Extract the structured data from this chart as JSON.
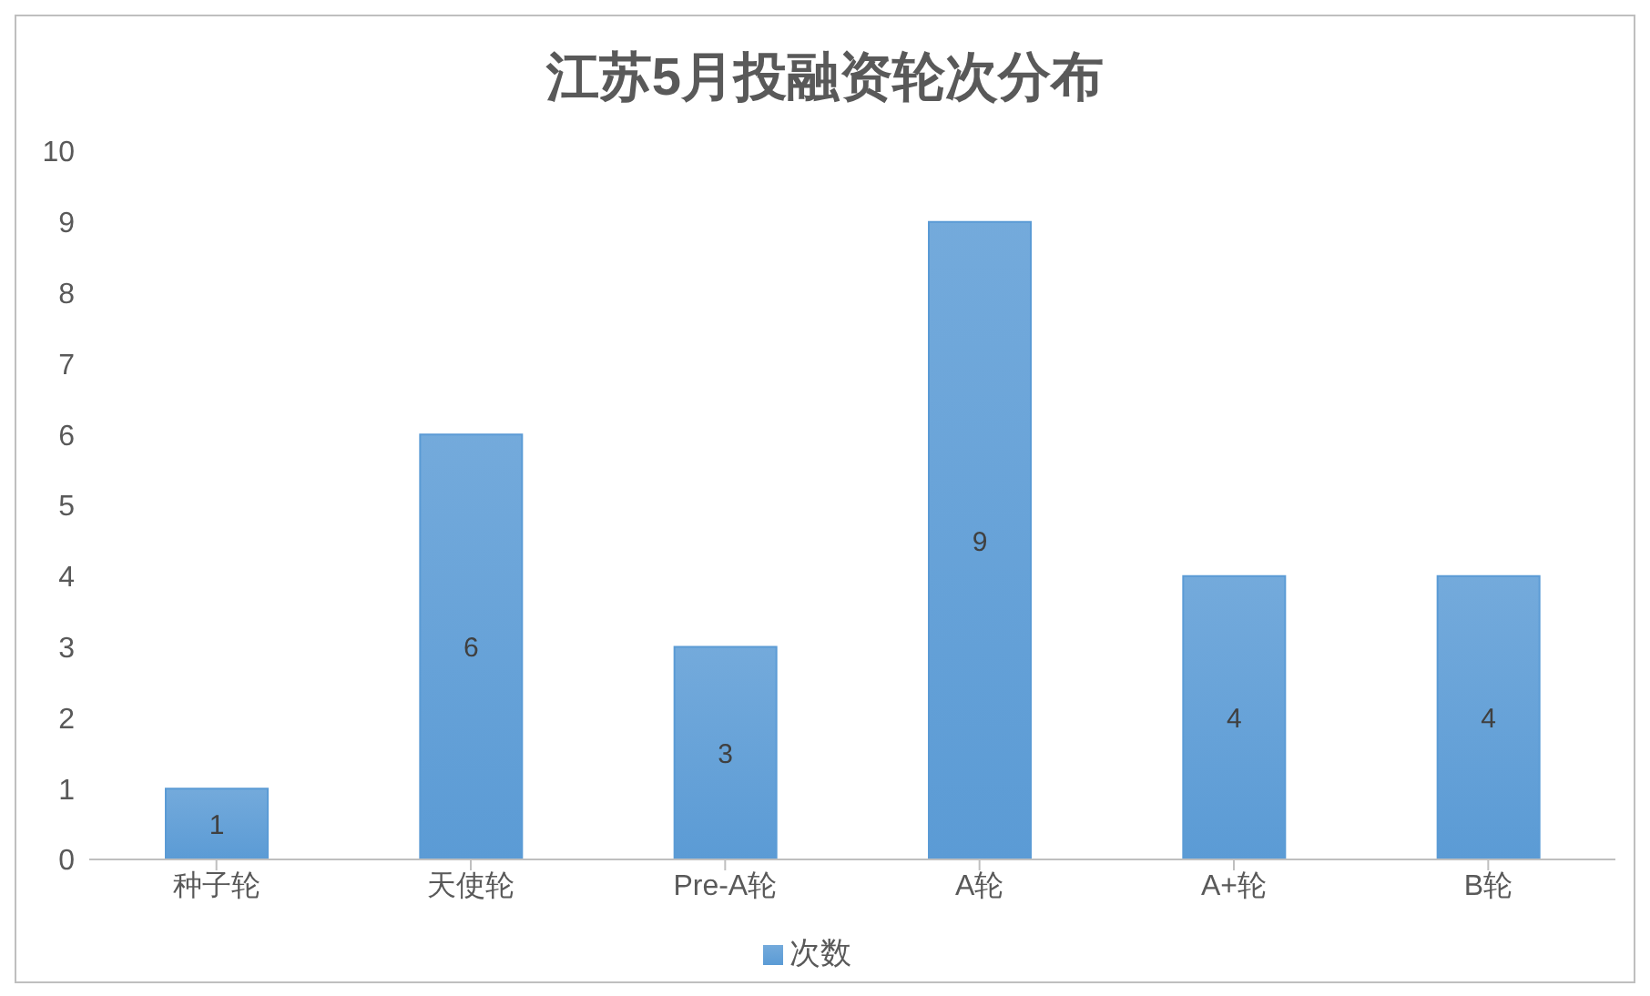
{
  "chart_data": {
    "type": "bar",
    "title": "江苏5月投融资轮次分布",
    "categories": [
      "种子轮",
      "天使轮",
      "Pre-A轮",
      "A轮",
      "A+轮",
      "B轮"
    ],
    "series": [
      {
        "name": "次数",
        "color": "#5b9bd5",
        "values": [
          1,
          6,
          3,
          9,
          4,
          4
        ]
      }
    ],
    "ylim": [
      0,
      10
    ],
    "yticks": [
      0,
      1,
      2,
      3,
      4,
      5,
      6,
      7,
      8,
      9,
      10
    ],
    "grid": false,
    "legend": "bottom",
    "data_labels": true
  }
}
